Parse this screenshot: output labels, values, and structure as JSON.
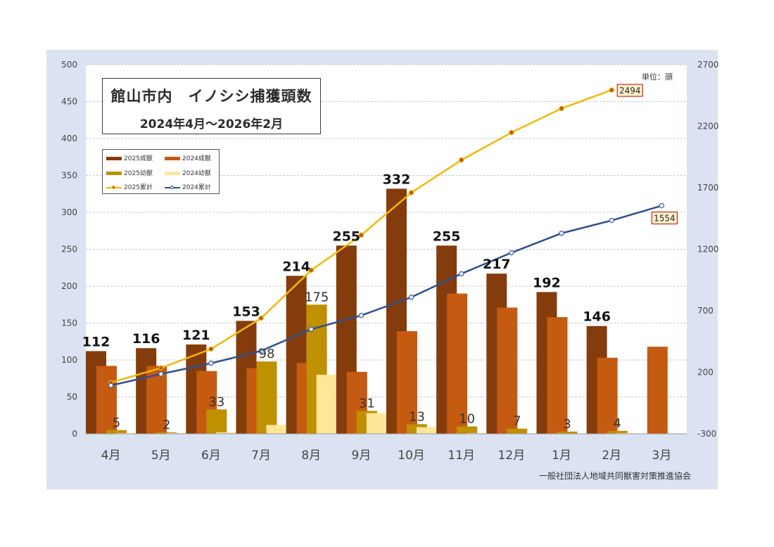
{
  "title": {
    "line1": "館山市内　イノシシ捕獲頭数",
    "line2": "2024年4月～2026年2月"
  },
  "unit_label": "単位：頭",
  "footer": "一般社団法人地域共同獣害対策推進協会",
  "colors": {
    "outer_bg": "#dbe3f2",
    "plot_bg": "#ffffff",
    "adult_2025": "#843c0c",
    "adult_2024": "#c55a11",
    "juv_2025": "#bf9000",
    "juv_2024": "#ffe699",
    "cum_2025": "#f2b705",
    "cum_2024": "#2f4f8f"
  },
  "legend": {
    "adult_2025": "2025成獣",
    "adult_2024": "2024成獣",
    "juv_2025": "2025幼獣",
    "juv_2024": "2024幼獣",
    "cum_2025": "2025累計",
    "cum_2024": "2024累計"
  },
  "chart_data": {
    "type": "bar",
    "categories": [
      "4月",
      "5月",
      "6月",
      "7月",
      "8月",
      "9月",
      "10月",
      "11月",
      "12月",
      "1月",
      "2月",
      "3月"
    ],
    "series": [
      {
        "name": "2025成獣",
        "type": "bar",
        "axis": "left",
        "values": [
          112,
          116,
          121,
          153,
          214,
          255,
          332,
          255,
          217,
          192,
          146,
          null
        ]
      },
      {
        "name": "2024成獣",
        "type": "bar",
        "axis": "left",
        "values": [
          92,
          92,
          85,
          89,
          96,
          84,
          139,
          190,
          171,
          158,
          103,
          118
        ]
      },
      {
        "name": "2025幼獣",
        "type": "bar",
        "axis": "left",
        "values": [
          5,
          2,
          33,
          98,
          175,
          31,
          13,
          10,
          7,
          3,
          4,
          null
        ]
      },
      {
        "name": "2024幼獣",
        "type": "bar",
        "axis": "left",
        "values": [
          1,
          1,
          2,
          12,
          80,
          28,
          9,
          1,
          0,
          0,
          1,
          0
        ]
      },
      {
        "name": "2025累計",
        "type": "line",
        "axis": "right",
        "values": [
          117,
          235,
          389,
          640,
          1029,
          1315,
          1660,
          1925,
          2149,
          2344,
          2494,
          null
        ]
      },
      {
        "name": "2024累計",
        "type": "line",
        "axis": "right",
        "values": [
          93,
          186,
          273,
          374,
          550,
          662,
          810,
          1001,
          1172,
          1330,
          1434,
          1554
        ]
      }
    ],
    "data_labels": {
      "adult_2025": [
        "112",
        "116",
        "121",
        "153",
        "214",
        "255",
        "332",
        "255",
        "217",
        "192",
        "146"
      ],
      "juv_2025": [
        "5",
        "2",
        "33",
        "98",
        "175",
        "31",
        "13",
        "10",
        "7",
        "3",
        "4"
      ],
      "cum_2025_end": "2494",
      "cum_2024_end": "1554"
    },
    "y_left": {
      "min": 0,
      "max": 500,
      "ticks": [
        "0",
        "50",
        "100",
        "150",
        "200",
        "250",
        "300",
        "350",
        "400",
        "450",
        "500"
      ]
    },
    "y_right": {
      "min": -300,
      "max": 2700,
      "ticks": [
        "-300",
        "200",
        "700",
        "1200",
        "1700",
        "2200",
        "2700"
      ]
    },
    "grid": "horizontal dashed",
    "legend_position": "top-left"
  }
}
